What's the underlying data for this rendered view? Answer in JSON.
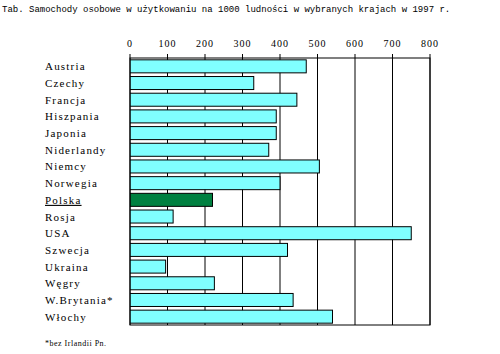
{
  "chart_data": {
    "type": "bar",
    "orientation": "horizontal",
    "title": "Tab. Samochody osobowe w użytkowaniu na 1000 ludności w wybranych krajach w 1997 r.",
    "categories": [
      "Austria",
      "Czechy",
      "Francja",
      "Hiszpania",
      "Japonia",
      "Niderlandy",
      "Niemcy",
      "Norwegia",
      "Polska",
      "Rosja",
      "USA",
      "Szwecja",
      "Ukraina",
      "Węgry",
      "W.Brytania*",
      "Włochy"
    ],
    "values": [
      470,
      330,
      445,
      390,
      390,
      370,
      505,
      400,
      220,
      115,
      750,
      420,
      95,
      225,
      435,
      540
    ],
    "colors": [
      "#80ffff",
      "#80ffff",
      "#80ffff",
      "#80ffff",
      "#80ffff",
      "#80ffff",
      "#80ffff",
      "#80ffff",
      "#008040",
      "#80ffff",
      "#80ffff",
      "#80ffff",
      "#80ffff",
      "#80ffff",
      "#80ffff",
      "#80ffff"
    ],
    "xlim": [
      0,
      800
    ],
    "xticks": [
      0,
      100,
      200,
      300,
      400,
      500,
      600,
      700,
      800
    ],
    "grid": true,
    "annotation": "*bez Irlandii Pn."
  }
}
